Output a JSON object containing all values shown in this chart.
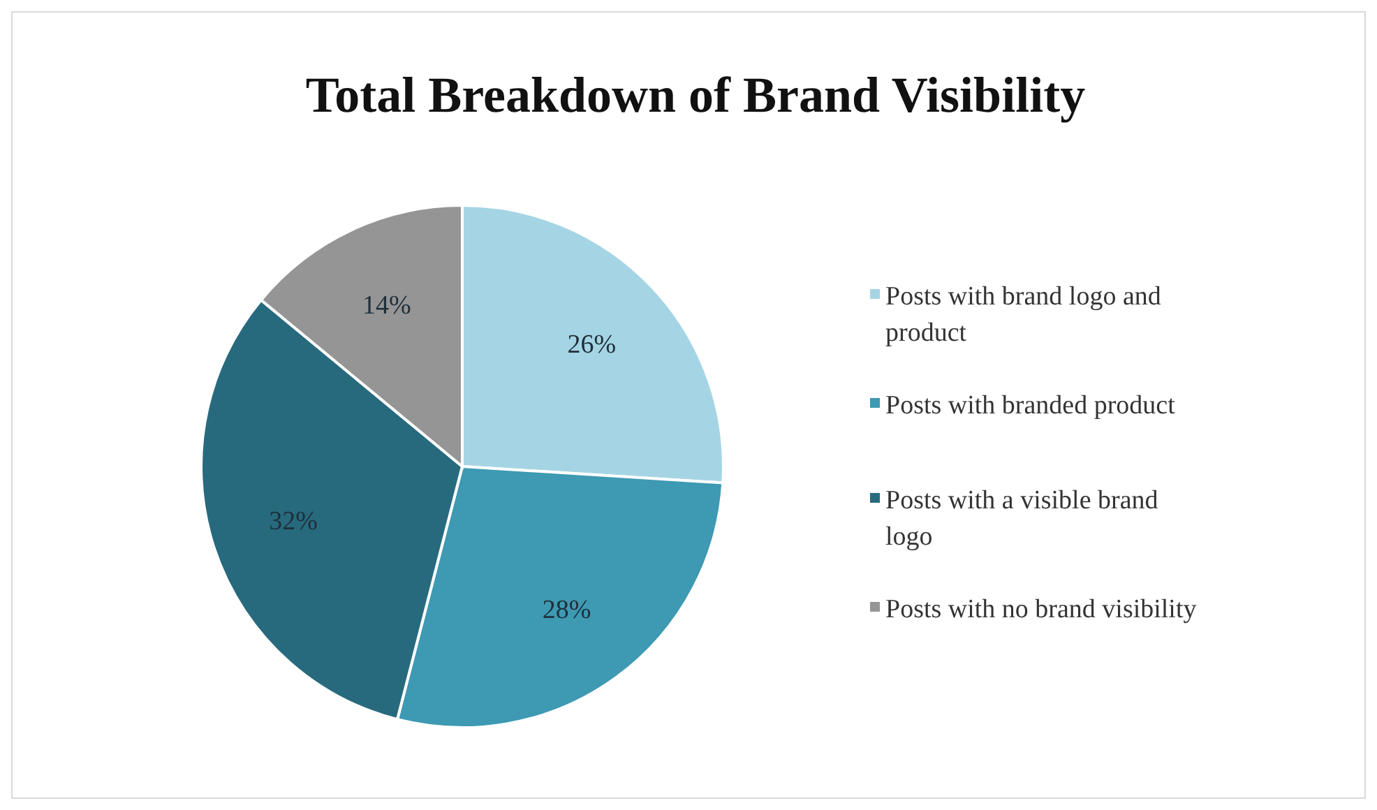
{
  "chart_data": {
    "type": "pie",
    "title": "Total Breakdown of Brand Visibility",
    "categories": [
      "Posts with brand logo and product",
      "Posts with branded product",
      "Posts with a visible brand logo",
      "Posts with no brand visibility"
    ],
    "values": [
      26,
      28,
      32,
      14
    ],
    "colors": [
      "#a5d5e4",
      "#3e99b3",
      "#286a7d",
      "#959595"
    ],
    "value_labels": [
      "26%",
      "28%",
      "32%",
      "14%"
    ],
    "legend": "right"
  }
}
